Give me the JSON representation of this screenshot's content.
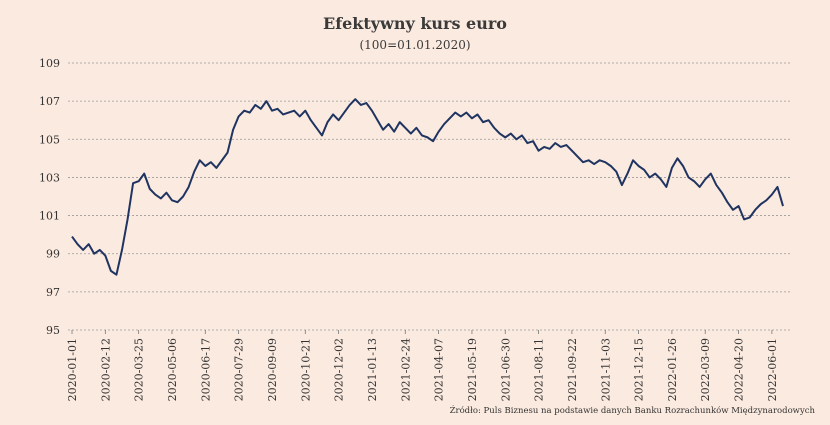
{
  "chart_data": {
    "type": "line",
    "title": "Efektywny kurs euro",
    "subtitle": "(100=01.01.2020)",
    "source": "Źródło: Puls Biznesu na podstawie danych Banku Rozrachunków Międzynarodowych",
    "color": "#1f3461",
    "grid": true,
    "x": [
      "2020-01-01",
      "2020-01-08",
      "2020-01-15",
      "2020-01-22",
      "2020-01-29",
      "2020-02-05",
      "2020-02-12",
      "2020-02-19",
      "2020-02-26",
      "2020-03-04",
      "2020-03-11",
      "2020-03-18",
      "2020-03-25",
      "2020-04-01",
      "2020-04-08",
      "2020-04-15",
      "2020-04-22",
      "2020-04-29",
      "2020-05-06",
      "2020-05-13",
      "2020-05-20",
      "2020-05-27",
      "2020-06-03",
      "2020-06-10",
      "2020-06-17",
      "2020-06-24",
      "2020-07-01",
      "2020-07-08",
      "2020-07-15",
      "2020-07-22",
      "2020-07-29",
      "2020-08-05",
      "2020-08-12",
      "2020-08-19",
      "2020-08-26",
      "2020-09-02",
      "2020-09-09",
      "2020-09-16",
      "2020-09-23",
      "2020-09-30",
      "2020-10-07",
      "2020-10-14",
      "2020-10-21",
      "2020-10-28",
      "2020-11-04",
      "2020-11-11",
      "2020-11-18",
      "2020-11-25",
      "2020-12-02",
      "2020-12-09",
      "2020-12-16",
      "2020-12-23",
      "2020-12-30",
      "2021-01-06",
      "2021-01-13",
      "2021-01-20",
      "2021-01-27",
      "2021-02-03",
      "2021-02-10",
      "2021-02-17",
      "2021-02-24",
      "2021-03-03",
      "2021-03-10",
      "2021-03-17",
      "2021-03-24",
      "2021-03-31",
      "2021-04-07",
      "2021-04-14",
      "2021-04-21",
      "2021-04-28",
      "2021-05-05",
      "2021-05-12",
      "2021-05-19",
      "2021-05-26",
      "2021-06-02",
      "2021-06-09",
      "2021-06-16",
      "2021-06-23",
      "2021-06-30",
      "2021-07-07",
      "2021-07-14",
      "2021-07-21",
      "2021-07-28",
      "2021-08-04",
      "2021-08-11",
      "2021-08-18",
      "2021-08-25",
      "2021-09-01",
      "2021-09-08",
      "2021-09-15",
      "2021-09-22",
      "2021-09-29",
      "2021-10-06",
      "2021-10-13",
      "2021-10-20",
      "2021-10-27",
      "2021-11-03",
      "2021-11-10",
      "2021-11-17",
      "2021-11-24",
      "2021-12-01",
      "2021-12-08",
      "2021-12-15",
      "2021-12-22",
      "2021-12-29",
      "2022-01-05",
      "2022-01-12",
      "2022-01-19",
      "2022-01-26",
      "2022-02-02",
      "2022-02-09",
      "2022-02-16",
      "2022-02-23",
      "2022-03-02",
      "2022-03-09",
      "2022-03-16",
      "2022-03-23",
      "2022-03-30",
      "2022-04-06",
      "2022-04-13",
      "2022-04-20",
      "2022-04-27",
      "2022-05-04",
      "2022-05-11",
      "2022-05-18",
      "2022-05-25",
      "2022-06-01",
      "2022-06-08",
      "2022-06-15"
    ],
    "values": [
      99.9,
      99.5,
      99.2,
      99.5,
      99.0,
      99.2,
      98.9,
      98.1,
      97.9,
      99.2,
      100.8,
      102.7,
      102.8,
      103.2,
      102.4,
      102.1,
      101.9,
      102.2,
      101.8,
      101.7,
      102.0,
      102.5,
      103.3,
      103.9,
      103.6,
      103.8,
      103.5,
      103.9,
      104.3,
      105.5,
      106.2,
      106.5,
      106.4,
      106.8,
      106.6,
      107.0,
      106.5,
      106.6,
      106.3,
      106.4,
      106.5,
      106.2,
      106.5,
      106.0,
      105.6,
      105.2,
      105.9,
      106.3,
      106.0,
      106.4,
      106.8,
      107.1,
      106.8,
      106.9,
      106.5,
      106.0,
      105.5,
      105.8,
      105.4,
      105.9,
      105.6,
      105.3,
      105.6,
      105.2,
      105.1,
      104.9,
      105.4,
      105.8,
      106.1,
      106.4,
      106.2,
      106.4,
      106.1,
      106.3,
      105.9,
      106.0,
      105.6,
      105.3,
      105.1,
      105.3,
      105.0,
      105.2,
      104.8,
      104.9,
      104.4,
      104.6,
      104.5,
      104.8,
      104.6,
      104.7,
      104.4,
      104.1,
      103.8,
      103.9,
      103.7,
      103.9,
      103.8,
      103.6,
      103.3,
      102.6,
      103.2,
      103.9,
      103.6,
      103.4,
      103.0,
      103.2,
      102.9,
      102.5,
      103.5,
      104.0,
      103.6,
      103.0,
      102.8,
      102.5,
      102.9,
      103.2,
      102.6,
      102.2,
      101.7,
      101.3,
      101.5,
      100.8,
      100.9,
      101.3,
      101.6,
      101.8,
      102.1,
      102.5,
      101.5
    ],
    "xlim": [
      "2020-01-01",
      "2022-06-15"
    ],
    "xticks": [
      "2020-01-01",
      "2020-02-12",
      "2020-03-25",
      "2020-05-06",
      "2020-06-17",
      "2020-07-29",
      "2020-09-09",
      "2020-10-21",
      "2020-12-02",
      "2021-01-13",
      "2021-02-24",
      "2021-04-07",
      "2021-05-19",
      "2021-06-30",
      "2021-08-11",
      "2021-09-22",
      "2021-11-03",
      "2021-12-15",
      "2022-01-26",
      "2022-03-09",
      "2022-04-20",
      "2022-06-01"
    ],
    "ylim": [
      95,
      109
    ],
    "yticks": [
      95,
      97,
      99,
      101,
      103,
      105,
      107,
      109
    ]
  }
}
